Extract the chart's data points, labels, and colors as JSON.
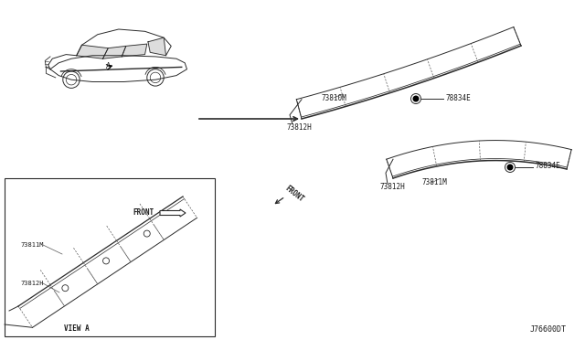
{
  "bg_color": "#ffffff",
  "fig_id": "J76600DT",
  "line_color": "#2a2a2a",
  "dash_color": "#555555",
  "text_color": "#1a1a1a",
  "label_73810M": "73810M",
  "label_73811M": "73811M",
  "label_73812H": "73812H",
  "label_78834E": "78834E",
  "label_70834E": "78834E",
  "label_front": "FRONT",
  "label_view_a": "VIEW A"
}
